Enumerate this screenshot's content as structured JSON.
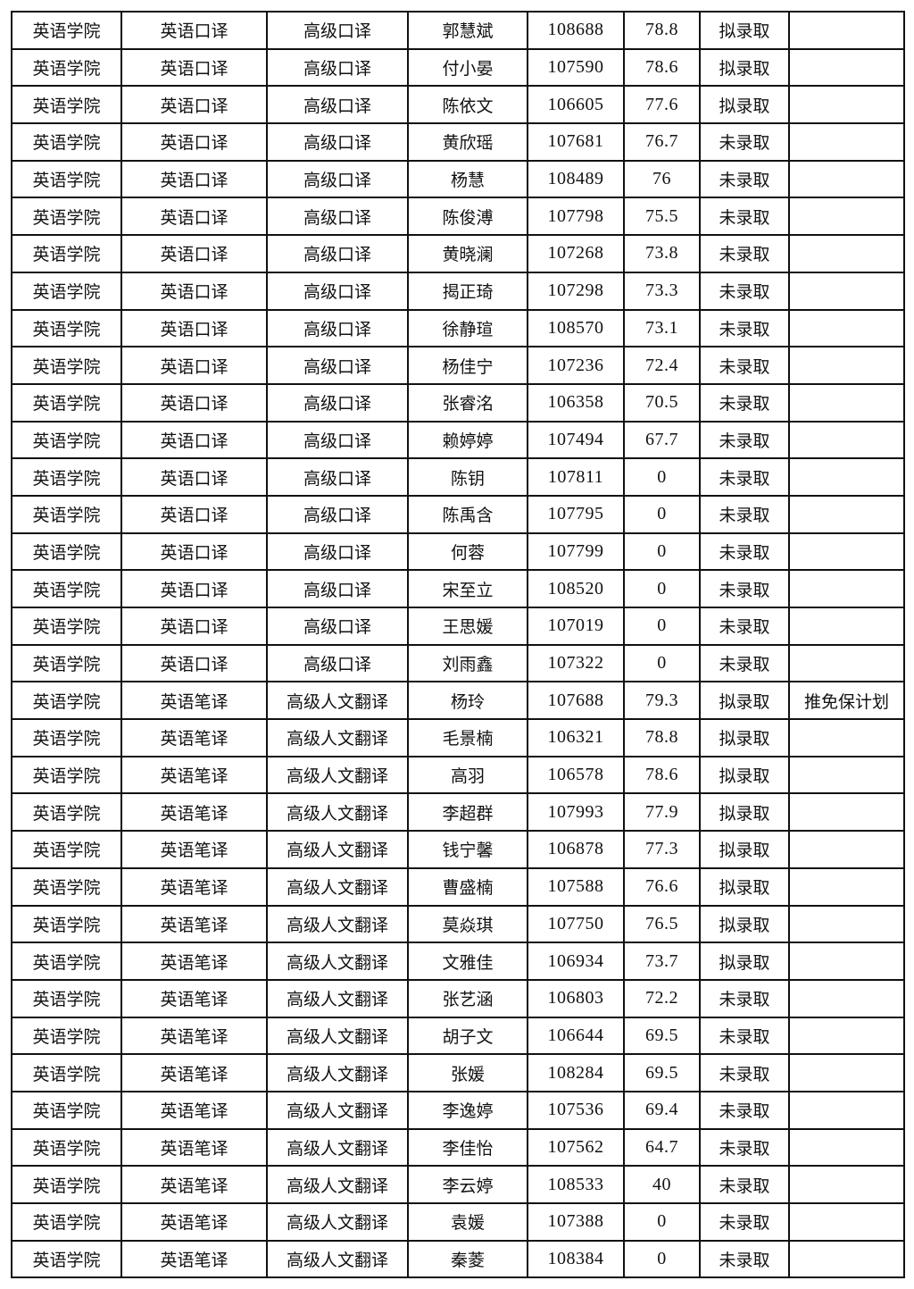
{
  "table": {
    "rows": [
      [
        "英语学院",
        "英语口译",
        "高级口译",
        "郭慧斌",
        "108688",
        "78.8",
        "拟录取",
        ""
      ],
      [
        "英语学院",
        "英语口译",
        "高级口译",
        "付小晏",
        "107590",
        "78.6",
        "拟录取",
        ""
      ],
      [
        "英语学院",
        "英语口译",
        "高级口译",
        "陈依文",
        "106605",
        "77.6",
        "拟录取",
        ""
      ],
      [
        "英语学院",
        "英语口译",
        "高级口译",
        "黄欣瑶",
        "107681",
        "76.7",
        "未录取",
        ""
      ],
      [
        "英语学院",
        "英语口译",
        "高级口译",
        "杨慧",
        "108489",
        "76",
        "未录取",
        ""
      ],
      [
        "英语学院",
        "英语口译",
        "高级口译",
        "陈俊溥",
        "107798",
        "75.5",
        "未录取",
        ""
      ],
      [
        "英语学院",
        "英语口译",
        "高级口译",
        "黄晓澜",
        "107268",
        "73.8",
        "未录取",
        ""
      ],
      [
        "英语学院",
        "英语口译",
        "高级口译",
        "揭正琦",
        "107298",
        "73.3",
        "未录取",
        ""
      ],
      [
        "英语学院",
        "英语口译",
        "高级口译",
        "徐静瑄",
        "108570",
        "73.1",
        "未录取",
        ""
      ],
      [
        "英语学院",
        "英语口译",
        "高级口译",
        "杨佳宁",
        "107236",
        "72.4",
        "未录取",
        ""
      ],
      [
        "英语学院",
        "英语口译",
        "高级口译",
        "张睿洺",
        "106358",
        "70.5",
        "未录取",
        ""
      ],
      [
        "英语学院",
        "英语口译",
        "高级口译",
        "赖婷婷",
        "107494",
        "67.7",
        "未录取",
        ""
      ],
      [
        "英语学院",
        "英语口译",
        "高级口译",
        "陈钥",
        "107811",
        "0",
        "未录取",
        ""
      ],
      [
        "英语学院",
        "英语口译",
        "高级口译",
        "陈禹含",
        "107795",
        "0",
        "未录取",
        ""
      ],
      [
        "英语学院",
        "英语口译",
        "高级口译",
        "何蓉",
        "107799",
        "0",
        "未录取",
        ""
      ],
      [
        "英语学院",
        "英语口译",
        "高级口译",
        "宋至立",
        "108520",
        "0",
        "未录取",
        ""
      ],
      [
        "英语学院",
        "英语口译",
        "高级口译",
        "王思媛",
        "107019",
        "0",
        "未录取",
        ""
      ],
      [
        "英语学院",
        "英语口译",
        "高级口译",
        "刘雨鑫",
        "107322",
        "0",
        "未录取",
        ""
      ],
      [
        "英语学院",
        "英语笔译",
        "高级人文翻译",
        "杨玲",
        "107688",
        "79.3",
        "拟录取",
        "推免保计划"
      ],
      [
        "英语学院",
        "英语笔译",
        "高级人文翻译",
        "毛景楠",
        "106321",
        "78.8",
        "拟录取",
        ""
      ],
      [
        "英语学院",
        "英语笔译",
        "高级人文翻译",
        "高羽",
        "106578",
        "78.6",
        "拟录取",
        ""
      ],
      [
        "英语学院",
        "英语笔译",
        "高级人文翻译",
        "李超群",
        "107993",
        "77.9",
        "拟录取",
        ""
      ],
      [
        "英语学院",
        "英语笔译",
        "高级人文翻译",
        "钱宁馨",
        "106878",
        "77.3",
        "拟录取",
        ""
      ],
      [
        "英语学院",
        "英语笔译",
        "高级人文翻译",
        "曹盛楠",
        "107588",
        "76.6",
        "拟录取",
        ""
      ],
      [
        "英语学院",
        "英语笔译",
        "高级人文翻译",
        "莫焱琪",
        "107750",
        "76.5",
        "拟录取",
        ""
      ],
      [
        "英语学院",
        "英语笔译",
        "高级人文翻译",
        "文雅佳",
        "106934",
        "73.7",
        "拟录取",
        ""
      ],
      [
        "英语学院",
        "英语笔译",
        "高级人文翻译",
        "张艺涵",
        "106803",
        "72.2",
        "未录取",
        ""
      ],
      [
        "英语学院",
        "英语笔译",
        "高级人文翻译",
        "胡子文",
        "106644",
        "69.5",
        "未录取",
        ""
      ],
      [
        "英语学院",
        "英语笔译",
        "高级人文翻译",
        "张媛",
        "108284",
        "69.5",
        "未录取",
        ""
      ],
      [
        "英语学院",
        "英语笔译",
        "高级人文翻译",
        "李逸婷",
        "107536",
        "69.4",
        "未录取",
        ""
      ],
      [
        "英语学院",
        "英语笔译",
        "高级人文翻译",
        "李佳怡",
        "107562",
        "64.7",
        "未录取",
        ""
      ],
      [
        "英语学院",
        "英语笔译",
        "高级人文翻译",
        "李云婷",
        "108533",
        "40",
        "未录取",
        ""
      ],
      [
        "英语学院",
        "英语笔译",
        "高级人文翻译",
        "袁媛",
        "107388",
        "0",
        "未录取",
        ""
      ],
      [
        "英语学院",
        "英语笔译",
        "高级人文翻译",
        "秦菱",
        "108384",
        "0",
        "未录取",
        ""
      ]
    ]
  }
}
